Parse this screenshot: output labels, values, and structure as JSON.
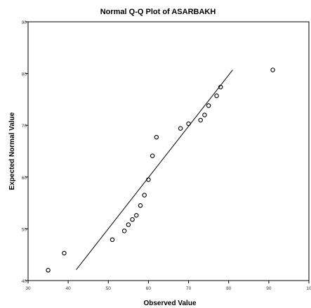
{
  "chart_data": {
    "type": "scatter",
    "title": "Normal Q-Q Plot of ASARBAKH",
    "xlabel": "Observed Value",
    "ylabel": "Expected Normal Value",
    "xlim": [
      30,
      100
    ],
    "ylim": [
      40,
      90
    ],
    "xticks": [
      "30",
      "40",
      "50",
      "60",
      "70",
      "80",
      "90",
      "10"
    ],
    "yticks": [
      "40",
      "50",
      "60",
      "70",
      "80",
      "90"
    ],
    "grid": false,
    "points": [
      {
        "x": 35,
        "y": 42.0
      },
      {
        "x": 39,
        "y": 45.3
      },
      {
        "x": 51,
        "y": 47.9
      },
      {
        "x": 54,
        "y": 49.6
      },
      {
        "x": 55,
        "y": 50.8
      },
      {
        "x": 56,
        "y": 51.8
      },
      {
        "x": 57,
        "y": 52.6
      },
      {
        "x": 58,
        "y": 54.5
      },
      {
        "x": 59,
        "y": 56.5
      },
      {
        "x": 60,
        "y": 59.5
      },
      {
        "x": 61,
        "y": 64.1
      },
      {
        "x": 62,
        "y": 67.7
      },
      {
        "x": 68,
        "y": 69.4
      },
      {
        "x": 70,
        "y": 70.3
      },
      {
        "x": 73,
        "y": 71.0
      },
      {
        "x": 74,
        "y": 72.0
      },
      {
        "x": 75,
        "y": 73.8
      },
      {
        "x": 77,
        "y": 75.7
      },
      {
        "x": 78,
        "y": 77.4
      },
      {
        "x": 91,
        "y": 80.7
      }
    ],
    "reference_line": {
      "x": [
        42,
        81
      ],
      "y": [
        42.1,
        80.7
      ]
    }
  }
}
